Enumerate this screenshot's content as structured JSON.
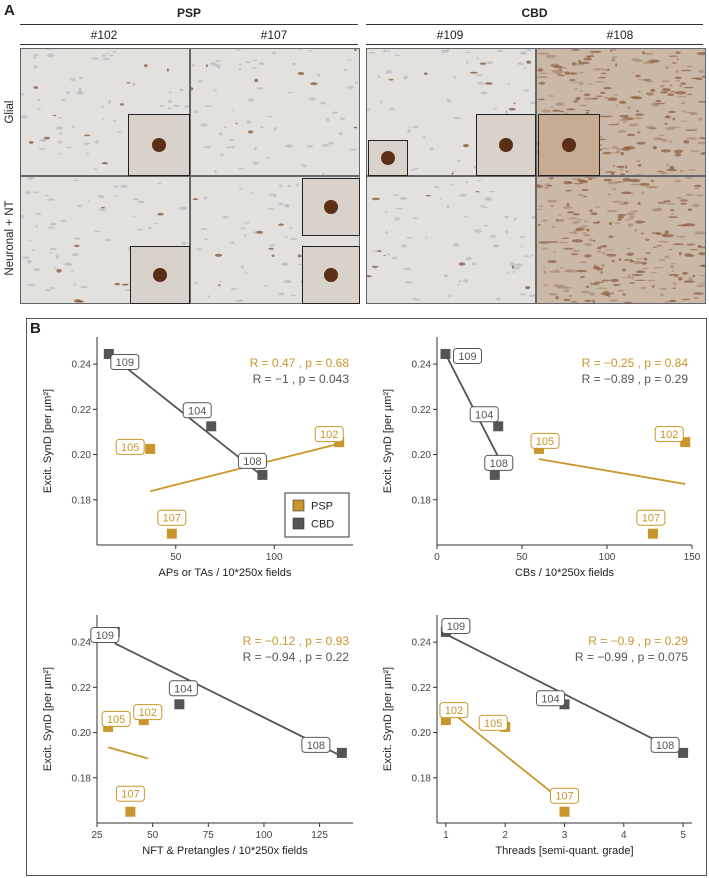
{
  "panel_a": {
    "letter": "A",
    "groups": [
      "PSP",
      "CBD"
    ],
    "cases": [
      "#102",
      "#107",
      "#109",
      "#108"
    ],
    "rows": [
      "Glial",
      "Neuronal + NT"
    ]
  },
  "panel_b": {
    "letter": "B"
  },
  "colors": {
    "psp": "#c9962c",
    "cbd": "#555555",
    "frame": "#555555"
  },
  "chart_data": [
    {
      "type": "scatter",
      "xlabel": "APs or TAs / 10*250x fields",
      "ylabel": "Excit. SynD [per µm²]",
      "xlim": [
        10,
        140
      ],
      "ylim": [
        0.16,
        0.252
      ],
      "xticks": [
        50,
        100
      ],
      "yticks": [
        0.18,
        0.2,
        0.22,
        0.24
      ],
      "stats": {
        "psp": "R = 0.47 , p = 0.68",
        "cbd": "R = −1 , p = 0.043"
      },
      "legend": [
        "PSP",
        "CBD"
      ],
      "series": [
        {
          "name": "PSP",
          "points": [
            {
              "id": "105",
              "x": 37,
              "y": 0.2025
            },
            {
              "id": "107",
              "x": 48,
              "y": 0.165
            },
            {
              "id": "102",
              "x": 133,
              "y": 0.2055
            }
          ],
          "fit": [
            [
              37,
              0.1838
            ],
            [
              133,
              0.2048
            ]
          ]
        },
        {
          "name": "CBD",
          "points": [
            {
              "id": "109",
              "x": 16,
              "y": 0.2445
            },
            {
              "id": "104",
              "x": 68,
              "y": 0.2125
            },
            {
              "id": "108",
              "x": 94,
              "y": 0.191
            }
          ],
          "fit": [
            [
              16,
              0.2445
            ],
            [
              94,
              0.1905
            ]
          ]
        }
      ]
    },
    {
      "type": "scatter",
      "xlabel": "CBs /  10*250x fields",
      "ylabel": "Excit. SynD [per µm²]",
      "xlim": [
        0,
        150
      ],
      "ylim": [
        0.16,
        0.252
      ],
      "xticks": [
        0,
        50,
        100,
        150
      ],
      "yticks": [
        0.18,
        0.2,
        0.22,
        0.24
      ],
      "stats": {
        "psp": "R = −0.25 , p = 0.84",
        "cbd": "R = −0.89 , p = 0.29"
      },
      "series": [
        {
          "name": "PSP",
          "points": [
            {
              "id": "105",
              "x": 60,
              "y": 0.2025
            },
            {
              "id": "107",
              "x": 127,
              "y": 0.165
            },
            {
              "id": "102",
              "x": 146,
              "y": 0.2055
            }
          ],
          "fit": [
            [
              60,
              0.198
            ],
            [
              146,
              0.187
            ]
          ]
        },
        {
          "name": "CBD",
          "points": [
            {
              "id": "109",
              "x": 5,
              "y": 0.2445
            },
            {
              "id": "104",
              "x": 36,
              "y": 0.2125
            },
            {
              "id": "108",
              "x": 34,
              "y": 0.191
            }
          ],
          "fit": [
            [
              5,
              0.2445
            ],
            [
              36,
              0.199
            ]
          ]
        }
      ]
    },
    {
      "type": "scatter",
      "xlabel": "NFT & Pretangles / 10*250x fields",
      "ylabel": "Excit. SynD [per µm²]",
      "xlim": [
        25,
        140
      ],
      "ylim": [
        0.16,
        0.252
      ],
      "xticks": [
        25,
        50,
        75,
        100,
        125
      ],
      "yticks": [
        0.18,
        0.2,
        0.22,
        0.24
      ],
      "stats": {
        "psp": "R = −0.12 , p = 0.93",
        "cbd": "R = −0.94 , p = 0.22"
      },
      "series": [
        {
          "name": "PSP",
          "points": [
            {
              "id": "105",
              "x": 30,
              "y": 0.2025
            },
            {
              "id": "102",
              "x": 46,
              "y": 0.2055
            },
            {
              "id": "107",
              "x": 40,
              "y": 0.165
            }
          ],
          "fit": [
            [
              30,
              0.1935
            ],
            [
              48,
              0.1885
            ]
          ]
        },
        {
          "name": "CBD",
          "points": [
            {
              "id": "109",
              "x": 33,
              "y": 0.2445
            },
            {
              "id": "104",
              "x": 62,
              "y": 0.2125
            },
            {
              "id": "108",
              "x": 135,
              "y": 0.191
            }
          ],
          "fit": [
            [
              33,
              0.2395
            ],
            [
              135,
              0.1895
            ]
          ]
        }
      ]
    },
    {
      "type": "scatter",
      "xlabel": "Threads [semi-quant. grade]",
      "ylabel": "Excit. SynD [per µm²]",
      "xlim": [
        0.85,
        5.15
      ],
      "ylim": [
        0.16,
        0.252
      ],
      "xticks": [
        1,
        2,
        3,
        4,
        5
      ],
      "yticks": [
        0.18,
        0.2,
        0.22,
        0.24
      ],
      "stats": {
        "psp": "R = −0.9 , p = 0.29",
        "cbd": "R = −0.99 , p = 0.075"
      },
      "series": [
        {
          "name": "PSP",
          "points": [
            {
              "id": "102",
              "x": 1,
              "y": 0.2055
            },
            {
              "id": "105",
              "x": 2,
              "y": 0.2025
            },
            {
              "id": "107",
              "x": 3,
              "y": 0.165
            }
          ],
          "fit": [
            [
              1,
              0.211
            ],
            [
              3,
              0.169
            ]
          ]
        },
        {
          "name": "CBD",
          "points": [
            {
              "id": "109",
              "x": 1,
              "y": 0.2445
            },
            {
              "id": "104",
              "x": 3,
              "y": 0.2125
            },
            {
              "id": "108",
              "x": 5,
              "y": 0.191
            }
          ],
          "fit": [
            [
              1,
              0.2435
            ],
            [
              5,
              0.1905
            ]
          ]
        }
      ]
    }
  ]
}
